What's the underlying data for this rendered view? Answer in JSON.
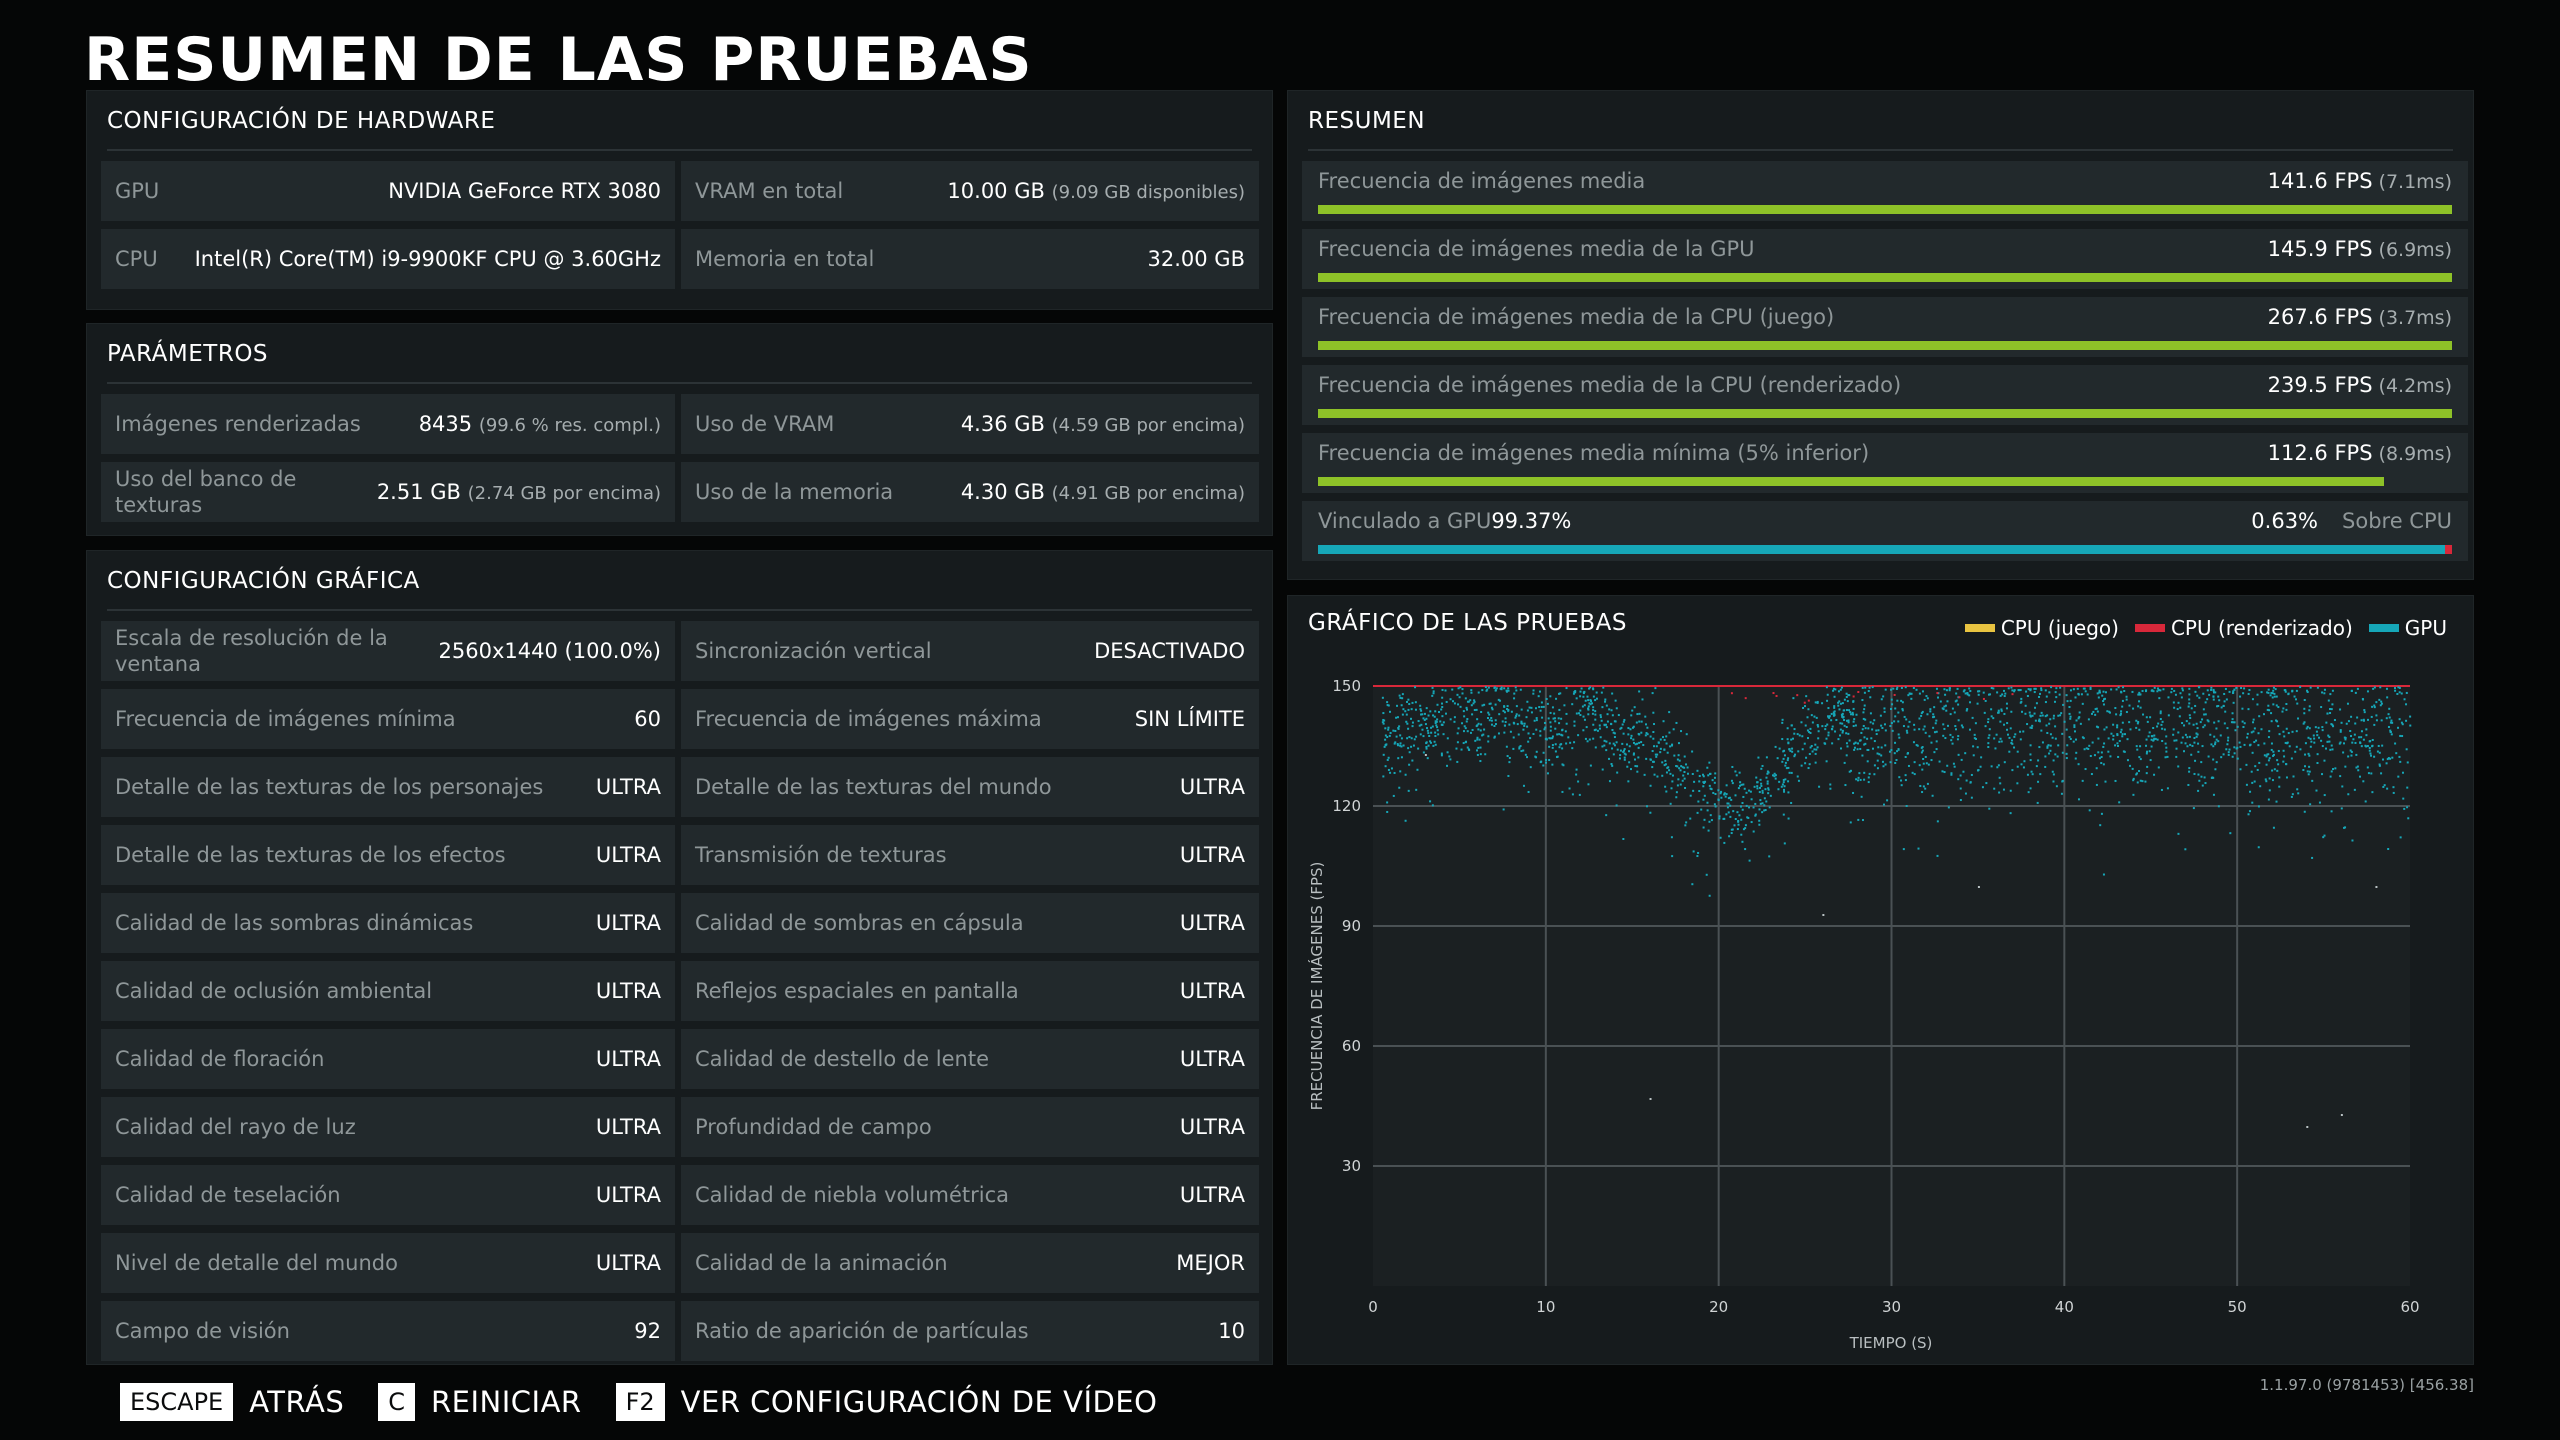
{
  "title": "RESUMEN DE LAS PRUEBAS",
  "hardware": {
    "header": "CONFIGURACIÓN DE HARDWARE",
    "gpu_label": "GPU",
    "gpu_value": "NVIDIA GeForce RTX 3080",
    "vram_label": "VRAM en total",
    "vram_value": "10.00 GB",
    "vram_sub": "(9.09 GB disponibles)",
    "cpu_label": "CPU",
    "cpu_value": "Intel(R) Core(TM) i9-9900KF CPU @ 3.60GHz",
    "mem_label": "Memoria en total",
    "mem_value": "32.00 GB"
  },
  "params": {
    "header": "PARÁMETROS",
    "frames_label": "Imágenes renderizadas",
    "frames_value": "8435",
    "frames_sub": "(99.6 % res. compl.)",
    "vram_use_label": "Uso de VRAM",
    "vram_use_value": "4.36 GB",
    "vram_use_sub": "(4.59 GB por encima)",
    "texpool_label": "Uso del banco de texturas",
    "texpool_value": "2.51 GB",
    "texpool_sub": "(2.74 GB por encima)",
    "mem_use_label": "Uso de la memoria",
    "mem_use_value": "4.30 GB",
    "mem_use_sub": "(4.91 GB por encima)"
  },
  "graphics": {
    "header": "CONFIGURACIÓN GRÁFICA",
    "rows": [
      {
        "l1": "Escala de resolución de la ventana",
        "v1": "2560x1440 (100.0%)",
        "l2": "Sincronización vertical",
        "v2": "DESACTIVADO"
      },
      {
        "l1": "Frecuencia de imágenes mínima",
        "v1": "60",
        "l2": "Frecuencia de imágenes máxima",
        "v2": "SIN LÍMITE"
      },
      {
        "l1": "Detalle de las texturas de los personajes",
        "v1": "ULTRA",
        "l2": "Detalle de las texturas del mundo",
        "v2": "ULTRA"
      },
      {
        "l1": "Detalle de las texturas de los efectos",
        "v1": "ULTRA",
        "l2": "Transmisión de texturas",
        "v2": "ULTRA"
      },
      {
        "l1": "Calidad de las sombras dinámicas",
        "v1": "ULTRA",
        "l2": "Calidad de sombras en cápsula",
        "v2": "ULTRA"
      },
      {
        "l1": "Calidad de oclusión ambiental",
        "v1": "ULTRA",
        "l2": "Reflejos espaciales en pantalla",
        "v2": "ULTRA"
      },
      {
        "l1": "Calidad de floración",
        "v1": "ULTRA",
        "l2": "Calidad de destello de lente",
        "v2": "ULTRA"
      },
      {
        "l1": "Calidad del rayo de luz",
        "v1": "ULTRA",
        "l2": "Profundidad de campo",
        "v2": "ULTRA"
      },
      {
        "l1": "Calidad de teselación",
        "v1": "ULTRA",
        "l2": "Calidad de niebla volumétrica",
        "v2": "ULTRA"
      },
      {
        "l1": "Nivel de detalle del mundo",
        "v1": "ULTRA",
        "l2": "Calidad de la animación",
        "v2": "MEJOR"
      },
      {
        "l1": "Campo de visión",
        "v1": "92",
        "l2": "Ratio de aparición de partículas",
        "v2": "10"
      }
    ]
  },
  "summary": {
    "header": "RESUMEN",
    "rows": [
      {
        "label": "Frecuencia de imágenes media",
        "value": "141.6 FPS",
        "ms": "(7.1ms)",
        "fill": 1.0
      },
      {
        "label": "Frecuencia de imágenes media de la GPU",
        "value": "145.9 FPS",
        "ms": "(6.9ms)",
        "fill": 1.0
      },
      {
        "label": "Frecuencia de imágenes media de la CPU (juego)",
        "value": "267.6 FPS",
        "ms": "(3.7ms)",
        "fill": 1.0
      },
      {
        "label": "Frecuencia de imágenes media de la CPU (renderizado)",
        "value": "239.5 FPS",
        "ms": "(4.2ms)",
        "fill": 1.0
      },
      {
        "label": "Frecuencia de imágenes media mínima (5% inferior)",
        "value": "112.6 FPS",
        "ms": "(8.9ms)",
        "fill": 0.94
      }
    ],
    "bound_gpu_label": "Vinculado a GPU",
    "bound_gpu_value": "99.37%",
    "bound_cpu_value": "0.63%",
    "bound_cpu_label": "Sobre CPU",
    "bound_gpu_fraction": 0.9937
  },
  "colors": {
    "cpu_game": "#e8c441",
    "cpu_render": "#d8283a",
    "gpu": "#16a7b8",
    "bar_green": "#8ec228"
  },
  "chart_data": {
    "type": "scatter",
    "title": "GRÁFICO DE LAS PRUEBAS",
    "xlabel": "TIEMPO (S)",
    "ylabel": "FRECUENCIA DE IMÁGENES (FPS)",
    "xlim": [
      0,
      60
    ],
    "ylim": [
      0,
      150
    ],
    "xticks": [
      0,
      10,
      20,
      30,
      40,
      50,
      60
    ],
    "yticks": [
      30,
      60,
      90,
      120,
      150
    ],
    "grid": true,
    "legend_position": "top-right",
    "cap_line": 150,
    "series": [
      {
        "name": "CPU (juego)",
        "color": "#e8c441",
        "values": []
      },
      {
        "name": "CPU (renderizado)",
        "color": "#d8283a",
        "values": []
      },
      {
        "name": "GPU",
        "color": "#16a7b8",
        "trend": [
          [
            0,
            138
          ],
          [
            2,
            140
          ],
          [
            4,
            141
          ],
          [
            5,
            143
          ],
          [
            6,
            140
          ],
          [
            7,
            146
          ],
          [
            8,
            142
          ],
          [
            9,
            140
          ],
          [
            10,
            138
          ],
          [
            11,
            142
          ],
          [
            12,
            146
          ],
          [
            13,
            141
          ],
          [
            14,
            138
          ],
          [
            15,
            136
          ],
          [
            16,
            138
          ],
          [
            17,
            132
          ],
          [
            18,
            128
          ],
          [
            19,
            124
          ],
          [
            20,
            121
          ],
          [
            21,
            118
          ],
          [
            22,
            122
          ],
          [
            23,
            127
          ],
          [
            24,
            133
          ],
          [
            25,
            137
          ],
          [
            26,
            141
          ],
          [
            27,
            143
          ],
          [
            28,
            140
          ],
          [
            29,
            139
          ],
          [
            30,
            138
          ],
          [
            32,
            140
          ],
          [
            34,
            140
          ],
          [
            36,
            141
          ],
          [
            38,
            142
          ],
          [
            40,
            141
          ],
          [
            42,
            140
          ],
          [
            44,
            141
          ],
          [
            46,
            141
          ],
          [
            48,
            140
          ],
          [
            50,
            140
          ],
          [
            52,
            140
          ],
          [
            54,
            139
          ],
          [
            56,
            139
          ],
          [
            58,
            139
          ],
          [
            60,
            139
          ]
        ],
        "outliers": [
          [
            3,
            133
          ],
          [
            16,
            47
          ],
          [
            26,
            93
          ],
          [
            35,
            100
          ],
          [
            54,
            40
          ],
          [
            56,
            43
          ],
          [
            58,
            100
          ]
        ]
      }
    ]
  },
  "footer": {
    "key_escape": "ESCAPE",
    "label_back": "ATRÁS",
    "key_c": "C",
    "label_restart": "REINICIAR",
    "key_f2": "F2",
    "label_video": "VER CONFIGURACIÓN DE VÍDEO",
    "version": "1.1.97.0 (9781453) [456.38]"
  }
}
